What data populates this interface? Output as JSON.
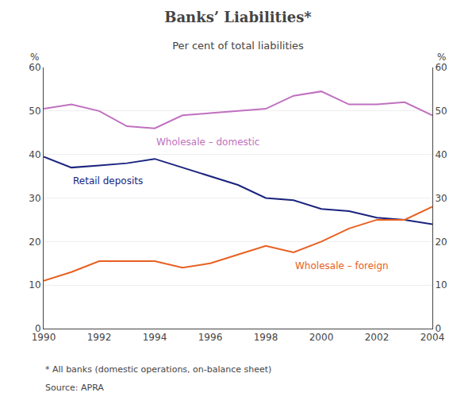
{
  "chart_data": {
    "type": "line",
    "title": "Banks’ Liabilities*",
    "subtitle": "Per cent of total liabilities",
    "ylabel": "%",
    "y2label": "%",
    "footnotes": [
      "* All banks (domestic operations, on-balance sheet)",
      "Source: APRA"
    ],
    "x": [
      1990,
      1991,
      1992,
      1993,
      1994,
      1995,
      1996,
      1997,
      1998,
      1999,
      2000,
      2001,
      2002,
      2003,
      2004
    ],
    "series": [
      {
        "name": "Wholesale – domestic",
        "color": "#c070c0",
        "values": [
          50.5,
          51.5,
          50.0,
          46.5,
          46.0,
          49.0,
          49.5,
          50.0,
          50.5,
          53.5,
          54.5,
          51.5,
          51.5,
          52.0,
          49.0
        ]
      },
      {
        "name": "Retail deposits",
        "color": "#1a237e",
        "values": [
          39.5,
          37.0,
          37.5,
          38.0,
          39.0,
          37.0,
          35.0,
          33.0,
          30.0,
          29.5,
          27.5,
          27.0,
          25.5,
          25.0,
          24.0
        ]
      },
      {
        "name": "Wholesale – foreign",
        "color": "#e86020",
        "values": [
          11.0,
          13.0,
          15.5,
          15.5,
          15.5,
          14.0,
          15.0,
          17.0,
          19.0,
          17.5,
          20.0,
          23.0,
          25.0,
          25.0,
          28.0
        ]
      }
    ],
    "xlim": [
      1990,
      2004
    ],
    "xticks": [
      1990,
      1992,
      1994,
      1996,
      1998,
      2000,
      2002,
      2004
    ],
    "ylim": [
      0,
      60
    ],
    "yticks": [
      0,
      10,
      20,
      30,
      40,
      50,
      60
    ],
    "y2lim": [
      0,
      60
    ],
    "y2ticks": [
      0,
      10,
      20,
      30,
      40,
      50,
      60
    ],
    "grid": "y"
  }
}
